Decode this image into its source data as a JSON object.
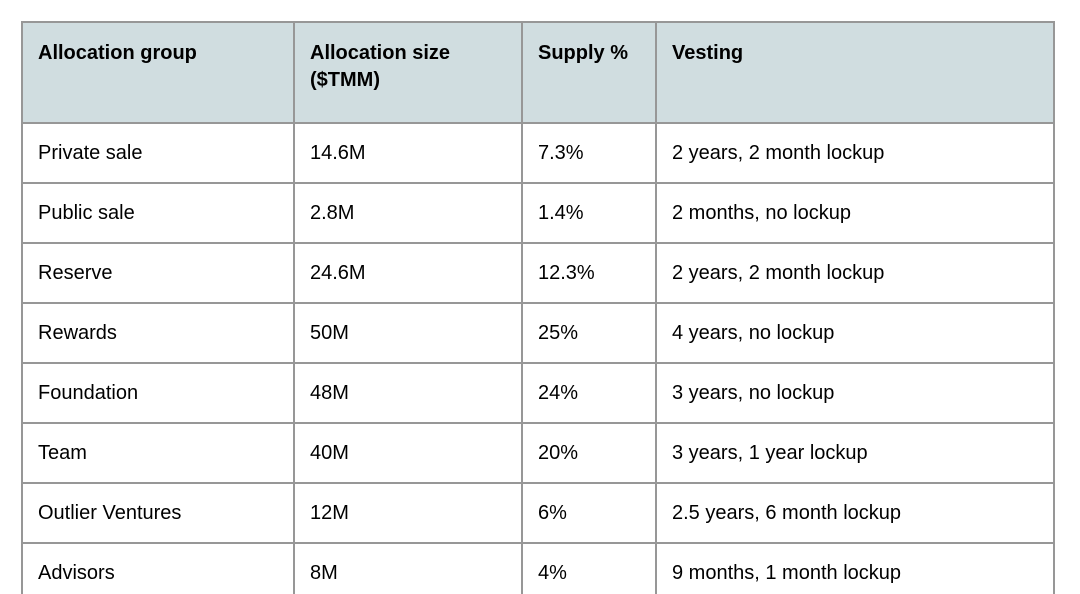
{
  "document": {
    "description": "Token allocation and vesting table"
  },
  "colors": {
    "header_bg": "#d0dde0",
    "border": "#979797",
    "text": "#000000",
    "page_bg": "#ffffff"
  },
  "table": {
    "headers": [
      "Allocation group",
      "Allocation size ($TMM)",
      "Supply %",
      "Vesting"
    ],
    "rows": [
      {
        "group": "Private sale",
        "size": "14.6M",
        "supply": "7.3%",
        "vesting": "2 years, 2 month lockup"
      },
      {
        "group": "Public sale",
        "size": "2.8M",
        "supply": "1.4%",
        "vesting": "2 months, no lockup"
      },
      {
        "group": "Reserve",
        "size": "24.6M",
        "supply": "12.3%",
        "vesting": "2 years, 2 month lockup"
      },
      {
        "group": "Rewards",
        "size": "50M",
        "supply": "25%",
        "vesting": "4 years, no lockup"
      },
      {
        "group": "Foundation",
        "size": "48M",
        "supply": "24%",
        "vesting": "3 years, no lockup"
      },
      {
        "group": "Team",
        "size": "40M",
        "supply": "20%",
        "vesting": "3 years, 1 year lockup"
      },
      {
        "group": "Outlier Ventures",
        "size": "12M",
        "supply": "6%",
        "vesting": "2.5 years, 6 month lockup"
      },
      {
        "group": "Advisors",
        "size": "8M",
        "supply": "4%",
        "vesting": "9 months, 1 month lockup"
      }
    ]
  }
}
